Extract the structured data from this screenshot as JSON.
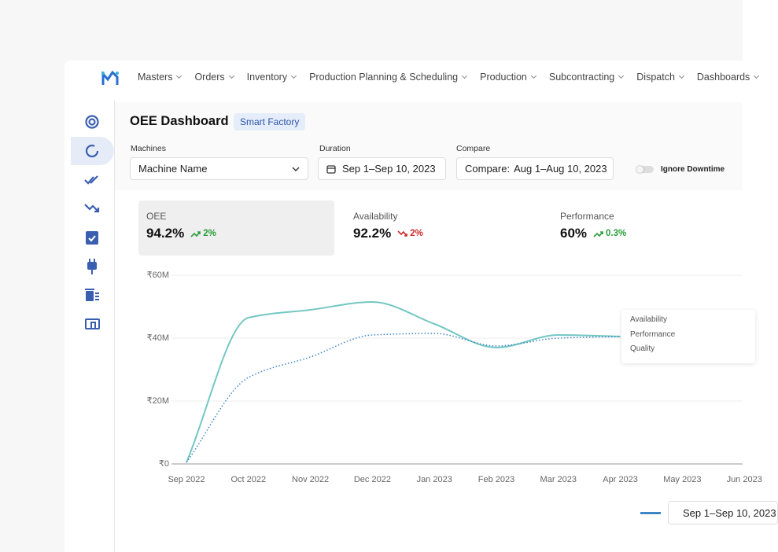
{
  "nav": {
    "items": [
      "Masters",
      "Orders",
      "Inventory",
      "Production Planning & Scheduling",
      "Production",
      "Subcontracting",
      "Dispatch",
      "Dashboards"
    ]
  },
  "header": {
    "title": "OEE Dashboard",
    "tag": "Smart Factory"
  },
  "filters": {
    "machines_label": "Machines",
    "machines_value": "Machine Name",
    "duration_label": "Duration",
    "duration_value": "Sep 1–Sep 10, 2023",
    "compare_label": "Compare",
    "compare_prefix": "Compare:",
    "compare_value": "Aug 1–Aug 10, 2023",
    "toggle_label": "Ignore Downtime"
  },
  "kpis": [
    {
      "label": "OEE",
      "value": "94.2%",
      "change": "2%",
      "direction": "up"
    },
    {
      "label": "Availability",
      "value": "92.2%",
      "change": "2%",
      "direction": "down"
    },
    {
      "label": "Performance",
      "value": "60%",
      "change": "0.3%",
      "direction": "up"
    }
  ],
  "chart_data": {
    "type": "line",
    "categories": [
      "Sep 2022",
      "Oct 2022",
      "Nov 2022",
      "Dec 2022",
      "Jan 2023",
      "Feb 2023",
      "Mar 2023",
      "Apr 2023",
      "May 2023",
      "Jun 2023"
    ],
    "series": [
      {
        "color": "#74c7c3",
        "dash": "solid",
        "values": [
          500000,
          46500000,
          49000000,
          51500000,
          44500000,
          37000000,
          41000000,
          40500000,
          null,
          null
        ]
      },
      {
        "color": "#3f86c6",
        "dash": "dotted",
        "values": [
          500000,
          27500000,
          34000000,
          41000000,
          41500000,
          37500000,
          40000000,
          40500000,
          null,
          null
        ]
      }
    ],
    "ylim": [
      0,
      60000000
    ],
    "yticks": [
      {
        "value": 0,
        "label": "₹0"
      },
      {
        "value": 20000000,
        "label": "₹20M"
      },
      {
        "value": 40000000,
        "label": "₹40M"
      },
      {
        "value": 60000000,
        "label": "₹60M"
      }
    ],
    "grid": true
  },
  "tooltip": {
    "items": [
      "Availability",
      "Performance",
      "Quality"
    ]
  },
  "legend_date": "Sep 1–Sep 10, 2023"
}
